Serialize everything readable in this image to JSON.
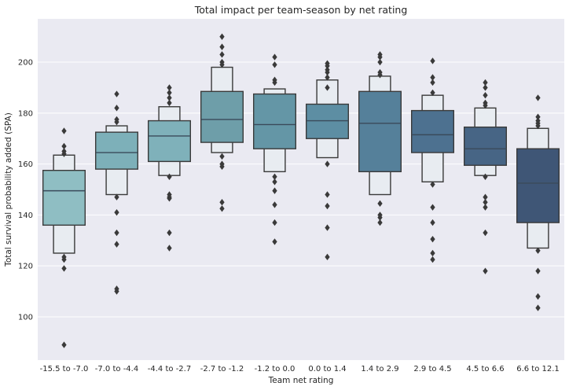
{
  "chart_data": {
    "type": "boxen",
    "title": "Total impact per team-season by net rating",
    "xlabel": "Team net rating",
    "ylabel": "Total survival probability added (SPA)",
    "ylim": [
      83,
      217
    ],
    "yticks": [
      100,
      120,
      140,
      160,
      180,
      200
    ],
    "grid": true,
    "categories": [
      "-15.5 to -7.0",
      "-7.0 to -4.4",
      "-4.4 to -2.7",
      "-2.7 to -1.2",
      "-1.2 to 0.0",
      "0.0 to 1.4",
      "1.4 to 2.9",
      "2.9 to 4.5",
      "4.5 to 6.6",
      "6.6 to 12.1"
    ],
    "colors": [
      "#8fbec3",
      "#7db0b9",
      "#7fb1ba",
      "#6e9ea9",
      "#6496a6",
      "#5d8ea3",
      "#55809a",
      "#4d7190",
      "#476585",
      "#3f5676"
    ],
    "series": [
      {
        "q1": 136,
        "median": 149.5,
        "q3": 157.5,
        "inner_low": 125,
        "inner_high": 163.5,
        "outliers": [
          173,
          167,
          165,
          164,
          123.5,
          122.5,
          119,
          89
        ]
      },
      {
        "q1": 158,
        "median": 164.5,
        "q3": 172.5,
        "inner_low": 148,
        "inner_high": 175,
        "outliers": [
          187.5,
          182,
          177.5,
          176.5,
          147,
          141,
          133,
          128.5,
          111,
          110
        ]
      },
      {
        "q1": 161,
        "median": 171,
        "q3": 177,
        "inner_low": 155.5,
        "inner_high": 182.5,
        "outliers": [
          190,
          188,
          186,
          184,
          155,
          148,
          147,
          146.5,
          133,
          127
        ]
      },
      {
        "q1": 168.5,
        "median": 177.5,
        "q3": 188.5,
        "inner_low": 164.5,
        "inner_high": 198,
        "outliers": [
          210,
          206,
          203,
          200,
          199,
          163,
          160,
          159,
          145,
          142.5
        ]
      },
      {
        "q1": 166,
        "median": 175.5,
        "q3": 187.5,
        "inner_low": 157,
        "inner_high": 189.5,
        "outliers": [
          202,
          199,
          193,
          192,
          155,
          153,
          149.5,
          144,
          137,
          129.5
        ]
      },
      {
        "q1": 170,
        "median": 177,
        "q3": 183.5,
        "inner_low": 162.5,
        "inner_high": 193,
        "outliers": [
          199.5,
          198.5,
          197,
          196,
          194,
          190,
          160,
          148,
          143.5,
          135,
          123.5
        ]
      },
      {
        "q1": 157,
        "median": 176,
        "q3": 188.5,
        "inner_low": 148,
        "inner_high": 194.5,
        "outliers": [
          203,
          202,
          200,
          196,
          195,
          144.5,
          140,
          139,
          137
        ]
      },
      {
        "q1": 164.5,
        "median": 171.5,
        "q3": 181,
        "inner_low": 153,
        "inner_high": 187,
        "outliers": [
          200.5,
          194,
          192,
          188,
          152,
          143,
          137,
          130.5,
          125,
          122.5
        ]
      },
      {
        "q1": 159.5,
        "median": 166,
        "q3": 174.5,
        "inner_low": 155.5,
        "inner_high": 182,
        "outliers": [
          192,
          190,
          187,
          184,
          183,
          155,
          147,
          145,
          143,
          133,
          118
        ]
      },
      {
        "q1": 137,
        "median": 152.5,
        "q3": 166,
        "inner_low": 127,
        "inner_high": 174,
        "outliers": [
          186,
          178.5,
          177,
          176,
          175,
          126,
          118,
          108,
          103.5
        ]
      }
    ]
  }
}
